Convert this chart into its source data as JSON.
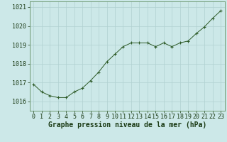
{
  "x": [
    0,
    1,
    2,
    3,
    4,
    5,
    6,
    7,
    8,
    9,
    10,
    11,
    12,
    13,
    14,
    15,
    16,
    17,
    18,
    19,
    20,
    21,
    22,
    23
  ],
  "y": [
    1016.9,
    1016.5,
    1016.3,
    1016.2,
    1016.2,
    1016.5,
    1016.7,
    1017.1,
    1017.55,
    1018.1,
    1018.5,
    1018.9,
    1019.1,
    1019.1,
    1019.1,
    1018.9,
    1019.1,
    1018.9,
    1019.1,
    1019.2,
    1019.6,
    1019.95,
    1020.4,
    1020.8
  ],
  "line_color": "#2d5a27",
  "marker_color": "#2d5a27",
  "bg_color": "#cce8e8",
  "grid_color": "#b0d0d0",
  "xlabel": "Graphe pression niveau de la mer (hPa)",
  "xlabel_color": "#1a3a14",
  "tick_color": "#1a3a14",
  "ylim": [
    1015.5,
    1021.3
  ],
  "yticks": [
    1016,
    1017,
    1018,
    1019,
    1020,
    1021
  ],
  "xticks": [
    0,
    1,
    2,
    3,
    4,
    5,
    6,
    7,
    8,
    9,
    10,
    11,
    12,
    13,
    14,
    15,
    16,
    17,
    18,
    19,
    20,
    21,
    22,
    23
  ],
  "spine_color": "#4a7a44",
  "title_fontsize": 7.0,
  "tick_fontsize": 6.0,
  "linewidth": 0.7,
  "markersize": 3.5,
  "markeredgewidth": 0.8
}
